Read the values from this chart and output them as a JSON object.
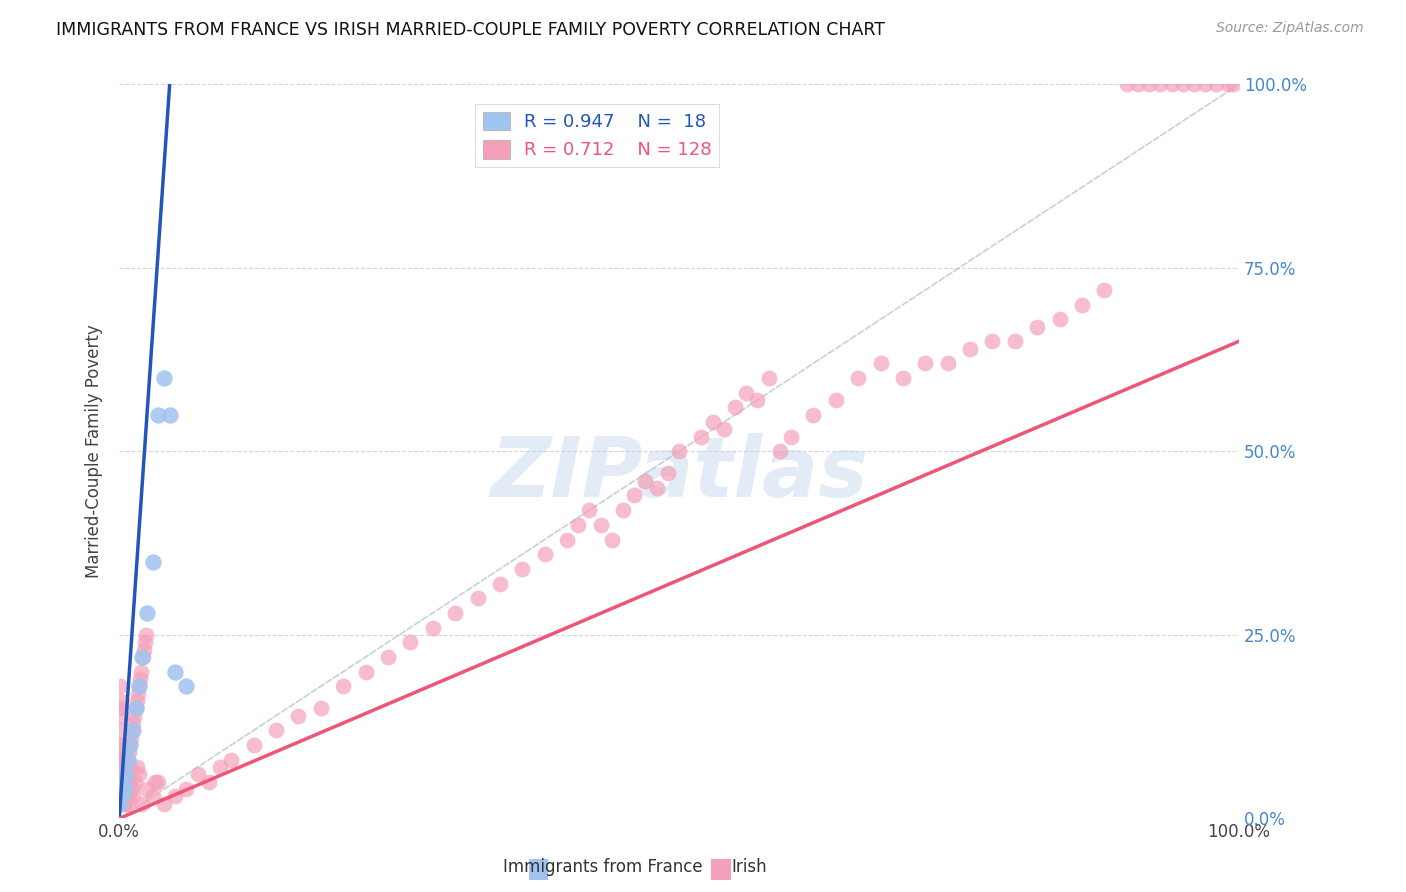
{
  "title": "IMMIGRANTS FROM FRANCE VS IRISH MARRIED-COUPLE FAMILY POVERTY CORRELATION CHART",
  "source": "Source: ZipAtlas.com",
  "ylabel": "Married-Couple Family Poverty",
  "legend_france_R": "0.947",
  "legend_france_N": "18",
  "legend_irish_R": "0.712",
  "legend_irish_N": "128",
  "france_color": "#A0C4F0",
  "irish_color": "#F4A0B8",
  "france_line_color": "#2255BB",
  "irish_line_color": "#EE5577",
  "diag_line_color": "#AABBDD",
  "watermark_text": "ZIPatlas",
  "background_color": "#FFFFFF",
  "grid_color": "#CCCCCC",
  "ytick_positions": [
    0,
    25,
    50,
    75,
    100
  ],
  "ytick_labels": [
    "0.0%",
    "25.0%",
    "50.0%",
    "75.0%",
    "100.0%"
  ],
  "xmin": 0,
  "xmax": 100,
  "ymin": 0,
  "ymax": 100,
  "france_line_x0": 0.0,
  "france_line_y0": 0.0,
  "france_line_x1": 4.5,
  "france_line_y1": 100.0,
  "irish_line_x0": 0.0,
  "irish_line_y0": 0.0,
  "irish_line_x1": 100.0,
  "irish_line_y1": 65.0,
  "france_pts_x": [
    0.1,
    0.2,
    0.3,
    0.5,
    0.6,
    0.8,
    1.0,
    1.2,
    1.5,
    1.8,
    2.0,
    2.5,
    3.0,
    3.5,
    4.0,
    4.5,
    5.0,
    6.0
  ],
  "france_pts_y": [
    2.0,
    3.0,
    5.0,
    4.0,
    6.0,
    8.0,
    10.0,
    12.0,
    15.0,
    18.0,
    22.0,
    28.0,
    35.0,
    55.0,
    60.0,
    55.0,
    20.0,
    18.0
  ],
  "irish_pts_x": [
    0.05,
    0.08,
    0.1,
    0.12,
    0.15,
    0.18,
    0.2,
    0.22,
    0.25,
    0.28,
    0.3,
    0.32,
    0.35,
    0.38,
    0.4,
    0.42,
    0.45,
    0.48,
    0.5,
    0.55,
    0.6,
    0.65,
    0.7,
    0.75,
    0.8,
    0.85,
    0.9,
    0.95,
    1.0,
    1.1,
    1.2,
    1.4,
    1.6,
    1.8,
    2.0,
    2.5,
    3.0,
    3.5,
    4.0,
    5.0,
    6.0,
    7.0,
    8.0,
    9.0,
    10.0,
    12.0,
    14.0,
    16.0,
    18.0,
    20.0,
    22.0,
    24.0,
    26.0,
    28.0,
    30.0,
    32.0,
    34.0,
    36.0,
    38.0,
    40.0,
    41.0,
    42.0,
    43.0,
    44.0,
    45.0,
    46.0,
    47.0,
    48.0,
    49.0,
    50.0,
    52.0,
    53.0,
    54.0,
    55.0,
    56.0,
    57.0,
    58.0,
    59.0,
    60.0,
    62.0,
    64.0,
    66.0,
    68.0,
    70.0,
    72.0,
    74.0,
    76.0,
    78.0,
    80.0,
    82.0,
    84.0,
    86.0,
    88.0,
    90.0,
    91.0,
    92.0,
    93.0,
    94.0,
    95.0,
    96.0,
    97.0,
    98.0,
    99.0,
    99.5,
    0.15,
    0.25,
    0.35,
    0.45,
    0.55,
    0.65,
    0.75,
    0.85,
    0.95,
    1.05,
    1.15,
    1.25,
    1.35,
    1.45,
    1.55,
    1.65,
    1.75,
    1.85,
    1.95,
    2.1,
    2.2,
    2.3,
    2.4,
    3.2
  ],
  "irish_pts_y": [
    18.0,
    12.0,
    15.0,
    10.0,
    8.0,
    14.0,
    6.0,
    10.0,
    5.0,
    8.0,
    4.0,
    6.0,
    3.0,
    7.0,
    2.0,
    4.0,
    5.0,
    2.0,
    3.0,
    4.0,
    3.0,
    5.0,
    4.0,
    6.0,
    2.0,
    3.0,
    5.0,
    7.0,
    5.0,
    4.0,
    3.0,
    5.0,
    7.0,
    6.0,
    2.0,
    4.0,
    3.0,
    5.0,
    2.0,
    3.0,
    4.0,
    6.0,
    5.0,
    7.0,
    8.0,
    10.0,
    12.0,
    14.0,
    15.0,
    18.0,
    20.0,
    22.0,
    24.0,
    26.0,
    28.0,
    30.0,
    32.0,
    34.0,
    36.0,
    38.0,
    40.0,
    42.0,
    40.0,
    38.0,
    42.0,
    44.0,
    46.0,
    45.0,
    47.0,
    50.0,
    52.0,
    54.0,
    53.0,
    56.0,
    58.0,
    57.0,
    60.0,
    50.0,
    52.0,
    55.0,
    57.0,
    60.0,
    62.0,
    60.0,
    62.0,
    62.0,
    64.0,
    65.0,
    65.0,
    67.0,
    68.0,
    70.0,
    72.0,
    100.0,
    100.0,
    100.0,
    100.0,
    100.0,
    100.0,
    100.0,
    100.0,
    100.0,
    100.0,
    100.0,
    16.0,
    8.0,
    6.0,
    4.0,
    5.0,
    7.0,
    8.0,
    9.0,
    10.0,
    11.0,
    12.0,
    13.0,
    14.0,
    15.0,
    16.0,
    17.0,
    18.0,
    19.0,
    20.0,
    22.0,
    23.0,
    24.0,
    25.0,
    5.0
  ]
}
